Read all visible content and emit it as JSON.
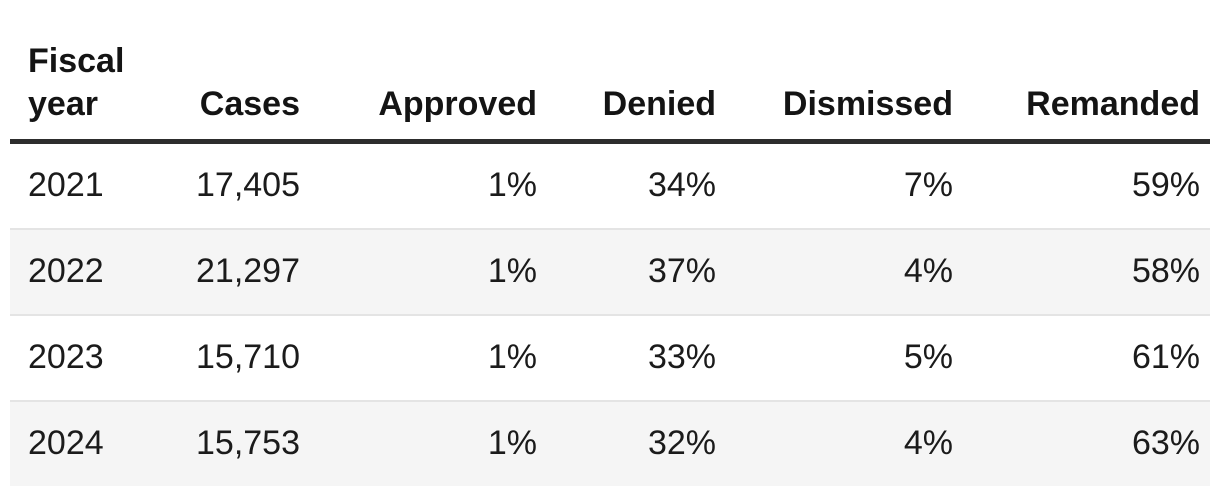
{
  "table": {
    "columns": [
      {
        "label": "Fiscal year",
        "align": "left"
      },
      {
        "label": "Cases",
        "align": "right"
      },
      {
        "label": "Approved",
        "align": "right"
      },
      {
        "label": "Denied",
        "align": "right"
      },
      {
        "label": "Dismissed",
        "align": "right"
      },
      {
        "label": "Remanded",
        "align": "right"
      }
    ],
    "rows": [
      [
        "2021",
        "17,405",
        "1%",
        "34%",
        "7%",
        "59%"
      ],
      [
        "2022",
        "21,297",
        "1%",
        "37%",
        "4%",
        "58%"
      ],
      [
        "2023",
        "15,710",
        "1%",
        "33%",
        "5%",
        "61%"
      ],
      [
        "2024",
        "15,753",
        "1%",
        "32%",
        "4%",
        "63%"
      ]
    ]
  },
  "chart_data": {
    "type": "table",
    "title": "",
    "columns": [
      "Fiscal year",
      "Cases",
      "Approved",
      "Denied",
      "Dismissed",
      "Remanded"
    ],
    "rows": [
      {
        "fiscal_year": "2021",
        "cases": 17405,
        "approved_pct": 1,
        "denied_pct": 34,
        "dismissed_pct": 7,
        "remanded_pct": 59
      },
      {
        "fiscal_year": "2022",
        "cases": 21297,
        "approved_pct": 1,
        "denied_pct": 37,
        "dismissed_pct": 4,
        "remanded_pct": 58
      },
      {
        "fiscal_year": "2023",
        "cases": 15710,
        "approved_pct": 1,
        "denied_pct": 33,
        "dismissed_pct": 5,
        "remanded_pct": 61
      },
      {
        "fiscal_year": "2024",
        "cases": 15753,
        "approved_pct": 1,
        "denied_pct": 32,
        "dismissed_pct": 4,
        "remanded_pct": 63
      }
    ],
    "layout": {
      "zebra_striping": true,
      "header_rule": "thick dark bottom border",
      "row_rule": "thin light divider",
      "numeric_alignment": "right"
    }
  },
  "colors": {
    "background": "#ffffff",
    "text": "#1b1b1b",
    "header_border": "#2d2d2d",
    "zebra_row": "#f5f5f5",
    "row_divider": "#e4e4e4"
  }
}
